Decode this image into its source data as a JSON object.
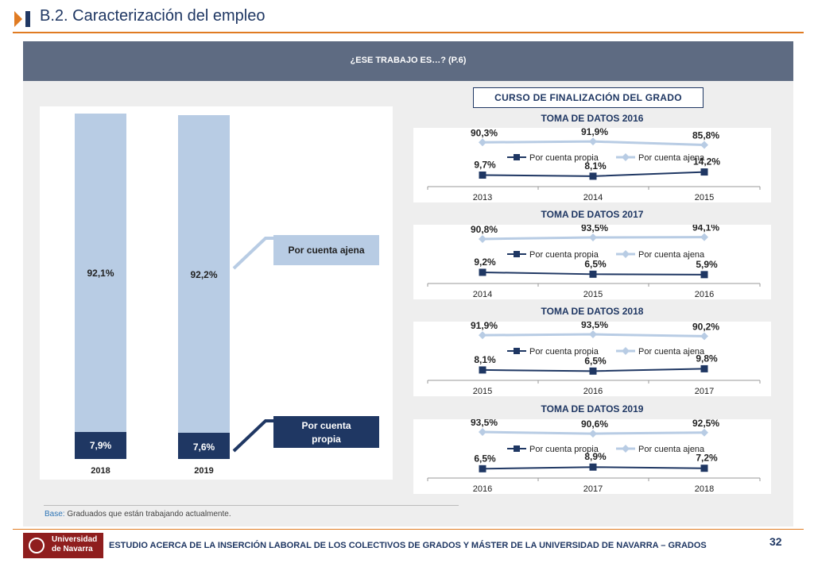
{
  "header": {
    "title": "B.2. Caracterización del empleo"
  },
  "banner": {
    "question": "¿ESE TRABAJO ES…? (P.6)"
  },
  "colors": {
    "ajena": "#b8cce4",
    "propia": "#1f3763",
    "accent": "#e07b22",
    "banner": "#5e6b82"
  },
  "left_chart": {
    "legend_ajena": "Por cuenta ajena",
    "legend_propia_line1": "Por cuenta",
    "legend_propia_line2": "propia",
    "bars": [
      {
        "category": "2018",
        "ajena": 92.1,
        "propia": 7.9,
        "ajena_label": "92,1%",
        "propia_label": "7,9%"
      },
      {
        "category": "2019",
        "ajena": 92.2,
        "propia": 7.6,
        "ajena_label": "92,2%",
        "propia_label": "7,6%"
      }
    ]
  },
  "right": {
    "section_title": "CURSO DE FINALIZACIÓN DEL GRADO"
  },
  "chart_data": [
    {
      "type": "bar",
      "stacked": true,
      "categories": [
        "2018",
        "2019"
      ],
      "series": [
        {
          "name": "Por cuenta propia",
          "values": [
            7.9,
            7.6
          ],
          "labels": [
            "7,9%",
            "7,6%"
          ]
        },
        {
          "name": "Por cuenta ajena",
          "values": [
            92.1,
            92.2
          ],
          "labels": [
            "92,1%",
            "92,2%"
          ]
        }
      ]
    },
    {
      "type": "line",
      "title": "TOMA DE DATOS 2016",
      "categories": [
        "2013",
        "2014",
        "2015"
      ],
      "series": [
        {
          "name": "Por cuenta propia",
          "values": [
            9.7,
            8.1,
            14.2
          ],
          "labels": [
            "9,7%",
            "8,1%",
            "14,2%"
          ]
        },
        {
          "name": "Por cuenta ajena",
          "values": [
            90.3,
            91.9,
            85.8
          ],
          "labels": [
            "90,3%",
            "91,9%",
            "85,8%"
          ]
        }
      ]
    },
    {
      "type": "line",
      "title": "TOMA DE DATOS 2017",
      "categories": [
        "2014",
        "2015",
        "2016"
      ],
      "series": [
        {
          "name": "Por cuenta propia",
          "values": [
            9.2,
            6.5,
            5.9
          ],
          "labels": [
            "9,2%",
            "6,5%",
            "5,9%"
          ]
        },
        {
          "name": "Por cuenta ajena",
          "values": [
            90.8,
            93.5,
            94.1
          ],
          "labels": [
            "90,8%",
            "93,5%",
            "94,1%"
          ]
        }
      ]
    },
    {
      "type": "line",
      "title": "TOMA DE DATOS 2018",
      "categories": [
        "2015",
        "2016",
        "2017"
      ],
      "series": [
        {
          "name": "Por cuenta propia",
          "values": [
            8.1,
            6.5,
            9.8
          ],
          "labels": [
            "8,1%",
            "6,5%",
            "9,8%"
          ]
        },
        {
          "name": "Por cuenta ajena",
          "values": [
            91.9,
            93.5,
            90.2
          ],
          "labels": [
            "91,9%",
            "93,5%",
            "90,2%"
          ]
        }
      ]
    },
    {
      "type": "line",
      "title": "TOMA DE DATOS 2019",
      "categories": [
        "2016",
        "2017",
        "2018"
      ],
      "series": [
        {
          "name": "Por cuenta propia",
          "values": [
            6.5,
            8.9,
            7.2
          ],
          "labels": [
            "6,5%",
            "8,9%",
            "7,2%"
          ]
        },
        {
          "name": "Por cuenta ajena",
          "values": [
            93.5,
            90.6,
            92.5
          ],
          "labels": [
            "93,5%",
            "90,6%",
            "92,5%"
          ]
        }
      ]
    }
  ],
  "footer": {
    "base_label": "Base:",
    "base_text": " Graduados que están trabajando actualmente.",
    "logo_line1": "Universidad",
    "logo_line2": "de Navarra",
    "study_text": "ESTUDIO ACERCA DE LA INSERCIÓN LABORAL DE LOS COLECTIVOS DE GRADOS Y MÁSTER DE LA UNIVERSIDAD DE NAVARRA – GRADOS",
    "page_number": "32"
  }
}
